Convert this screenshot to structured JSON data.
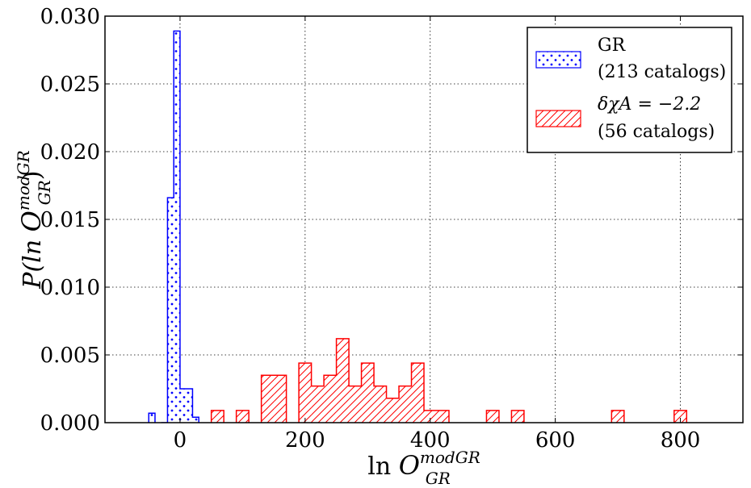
{
  "chart_data": {
    "type": "histogram",
    "xlabel": {
      "prefix": "ln ",
      "main": "O",
      "sup": "modGR",
      "sub": "GR"
    },
    "ylabel": {
      "prefix": "P(ln ",
      "main": "O",
      "sup": "modGR",
      "sub": "GR",
      "suffix": ")"
    },
    "xlim": [
      -120,
      900
    ],
    "ylim": [
      0,
      0.03
    ],
    "xticks": [
      0,
      200,
      400,
      600,
      800
    ],
    "xtick_labels": [
      "0",
      "200",
      "400",
      "600",
      "800"
    ],
    "yticks": [
      0,
      0.005,
      0.01,
      0.015,
      0.02,
      0.025,
      0.03
    ],
    "ytick_labels": [
      "0.000",
      "0.005",
      "0.010",
      "0.015",
      "0.020",
      "0.025",
      "0.030"
    ],
    "grid": true,
    "legend_position": "top-right",
    "series": [
      {
        "name": "GR",
        "legend_line1": "GR",
        "legend_line2": "(213 catalogs)",
        "color": "#0000ff",
        "hatch": "dots",
        "bin_width": 10,
        "bin_starts": [
          -50,
          -30,
          -20,
          -10,
          0,
          10,
          20
        ],
        "bin_starts_note_none": "",
        "values": [
          0.0007,
          0.0,
          0.0166,
          0.0289,
          0.0025,
          0.0025,
          0.0004
        ]
      },
      {
        "name": "δχA = −2.2",
        "legend_line1": "δχA = −2.2",
        "legend_line2": "(56 catalogs)",
        "color": "#ff0000",
        "hatch": "diagonal",
        "bin_width": 20,
        "bin_starts": [
          50,
          90,
          130,
          150,
          190,
          210,
          230,
          250,
          270,
          290,
          310,
          330,
          350,
          370,
          390,
          410,
          490,
          530,
          690,
          790
        ],
        "values": [
          0.0009,
          0.0009,
          0.0035,
          0.0035,
          0.0044,
          0.0027,
          0.0035,
          0.0062,
          0.0027,
          0.0044,
          0.0027,
          0.0018,
          0.0027,
          0.0044,
          0.0009,
          0.0009,
          0.0009,
          0.0009,
          0.0009,
          0.0009
        ]
      }
    ]
  }
}
